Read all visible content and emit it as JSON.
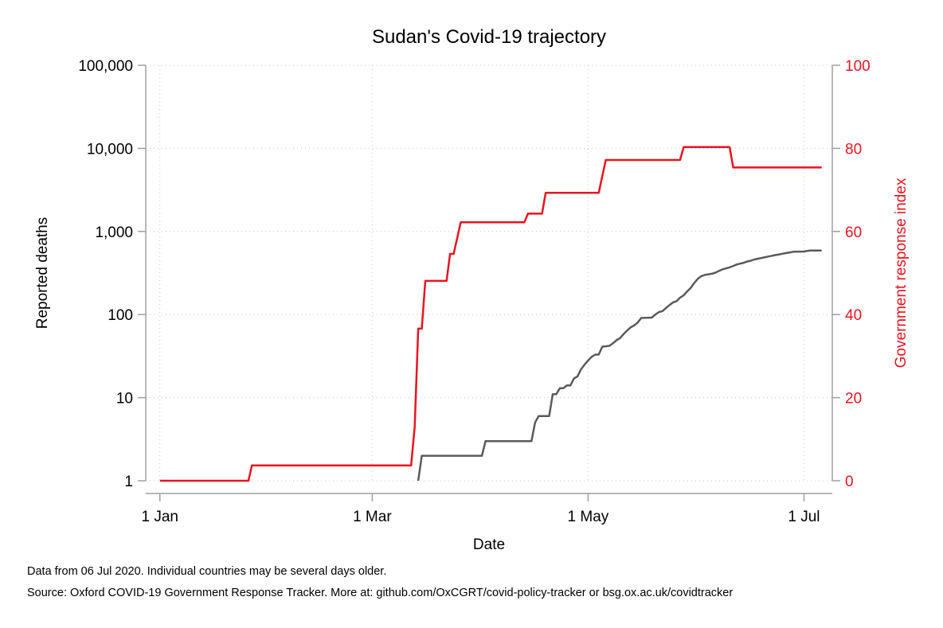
{
  "chart_data": {
    "type": "line",
    "title": "Sudan's Covid-19 trajectory",
    "xlabel": "Date",
    "ylabel_left": "Reported deaths",
    "ylabel_right": "Government response index",
    "x_ticks": [
      {
        "date": "2020-01-01",
        "label": "1 Jan"
      },
      {
        "date": "2020-03-01",
        "label": "1 Mar"
      },
      {
        "date": "2020-05-01",
        "label": "1 May"
      },
      {
        "date": "2020-07-01",
        "label": "1 Jul"
      }
    ],
    "x_range": [
      "2019-12-28",
      "2020-07-09"
    ],
    "y_left": {
      "scale": "log",
      "range": [
        1,
        100000
      ],
      "ticks": [
        {
          "value": 1,
          "label": "1"
        },
        {
          "value": 10,
          "label": "10"
        },
        {
          "value": 100,
          "label": "100"
        },
        {
          "value": 1000,
          "label": "1,000"
        },
        {
          "value": 10000,
          "label": "10,000"
        },
        {
          "value": 100000,
          "label": "100,000"
        }
      ]
    },
    "y_right": {
      "scale": "linear",
      "range": [
        0,
        100
      ],
      "ticks": [
        {
          "value": 0,
          "label": "0"
        },
        {
          "value": 20,
          "label": "20"
        },
        {
          "value": 40,
          "label": "40"
        },
        {
          "value": 60,
          "label": "60"
        },
        {
          "value": 80,
          "label": "80"
        },
        {
          "value": 100,
          "label": "100"
        }
      ]
    },
    "grid": true,
    "series": [
      {
        "axis": "left",
        "color": "#5a5a5a",
        "points": [
          [
            "2020-03-14",
            1
          ],
          [
            "2020-03-15",
            2
          ],
          [
            "2020-04-01",
            2
          ],
          [
            "2020-04-02",
            3
          ],
          [
            "2020-04-15",
            3
          ],
          [
            "2020-04-16",
            5
          ],
          [
            "2020-04-17",
            6
          ],
          [
            "2020-04-20",
            6
          ],
          [
            "2020-04-21",
            11
          ],
          [
            "2020-04-22",
            11
          ],
          [
            "2020-04-23",
            13
          ],
          [
            "2020-04-24",
            13
          ],
          [
            "2020-04-25",
            14
          ],
          [
            "2020-04-26",
            14
          ],
          [
            "2020-04-27",
            17
          ],
          [
            "2020-04-28",
            18
          ],
          [
            "2020-04-29",
            22
          ],
          [
            "2020-04-30",
            25
          ],
          [
            "2020-05-01",
            28
          ],
          [
            "2020-05-02",
            31
          ],
          [
            "2020-05-03",
            33
          ],
          [
            "2020-05-04",
            33
          ],
          [
            "2020-05-05",
            41
          ],
          [
            "2020-05-07",
            42
          ],
          [
            "2020-05-08",
            45
          ],
          [
            "2020-05-09",
            49
          ],
          [
            "2020-05-10",
            52
          ],
          [
            "2020-05-11",
            58
          ],
          [
            "2020-05-12",
            64
          ],
          [
            "2020-05-13",
            70
          ],
          [
            "2020-05-14",
            74
          ],
          [
            "2020-05-15",
            80
          ],
          [
            "2020-05-16",
            91
          ],
          [
            "2020-05-19",
            92
          ],
          [
            "2020-05-20",
            100
          ],
          [
            "2020-05-21",
            107
          ],
          [
            "2020-05-22",
            110
          ],
          [
            "2020-05-23",
            120
          ],
          [
            "2020-05-24",
            130
          ],
          [
            "2020-05-25",
            140
          ],
          [
            "2020-05-26",
            145
          ],
          [
            "2020-05-27",
            160
          ],
          [
            "2020-05-28",
            170
          ],
          [
            "2020-05-29",
            190
          ],
          [
            "2020-05-30",
            210
          ],
          [
            "2020-05-31",
            240
          ],
          [
            "2020-06-01",
            270
          ],
          [
            "2020-06-02",
            290
          ],
          [
            "2020-06-03",
            300
          ],
          [
            "2020-06-04",
            305
          ],
          [
            "2020-06-05",
            310
          ],
          [
            "2020-06-06",
            320
          ],
          [
            "2020-06-07",
            335
          ],
          [
            "2020-06-08",
            350
          ],
          [
            "2020-06-09",
            360
          ],
          [
            "2020-06-10",
            370
          ],
          [
            "2020-06-11",
            385
          ],
          [
            "2020-06-12",
            400
          ],
          [
            "2020-06-13",
            410
          ],
          [
            "2020-06-14",
            420
          ],
          [
            "2020-06-15",
            435
          ],
          [
            "2020-06-16",
            445
          ],
          [
            "2020-06-17",
            460
          ],
          [
            "2020-06-18",
            470
          ],
          [
            "2020-06-19",
            480
          ],
          [
            "2020-06-20",
            490
          ],
          [
            "2020-06-21",
            500
          ],
          [
            "2020-06-22",
            510
          ],
          [
            "2020-06-23",
            520
          ],
          [
            "2020-06-24",
            530
          ],
          [
            "2020-06-25",
            540
          ],
          [
            "2020-06-26",
            550
          ],
          [
            "2020-06-27",
            560
          ],
          [
            "2020-06-28",
            570
          ],
          [
            "2020-06-30",
            572
          ],
          [
            "2020-07-01",
            573
          ],
          [
            "2020-07-02",
            585
          ],
          [
            "2020-07-03",
            590
          ],
          [
            "2020-07-06",
            590
          ]
        ]
      },
      {
        "axis": "right",
        "color": "#e8141f",
        "points": [
          [
            "2020-01-01",
            0
          ],
          [
            "2020-01-26",
            0
          ],
          [
            "2020-01-27",
            3.7
          ],
          [
            "2020-03-12",
            3.7
          ],
          [
            "2020-03-13",
            13
          ],
          [
            "2020-03-14",
            36.6
          ],
          [
            "2020-03-15",
            36.6
          ],
          [
            "2020-03-16",
            48.1
          ],
          [
            "2020-03-22",
            48.1
          ],
          [
            "2020-03-23",
            54.6
          ],
          [
            "2020-03-24",
            54.6
          ],
          [
            "2020-03-26",
            62.2
          ],
          [
            "2020-04-13",
            62.2
          ],
          [
            "2020-04-14",
            64.3
          ],
          [
            "2020-04-18",
            64.3
          ],
          [
            "2020-04-19",
            69.3
          ],
          [
            "2020-05-04",
            69.3
          ],
          [
            "2020-05-06",
            77.2
          ],
          [
            "2020-05-27",
            77.2
          ],
          [
            "2020-05-28",
            80.3
          ],
          [
            "2020-06-10",
            80.3
          ],
          [
            "2020-06-11",
            75.4
          ],
          [
            "2020-07-06",
            75.4
          ]
        ]
      }
    ],
    "notes": [
      "Data from 06 Jul 2020. Individual countries may be several days older.",
      "Source: Oxford COVID-19 Government Response Tracker. More at: github.com/OxCGRT/covid-policy-tracker or bsg.ox.ac.uk/covidtracker"
    ]
  }
}
